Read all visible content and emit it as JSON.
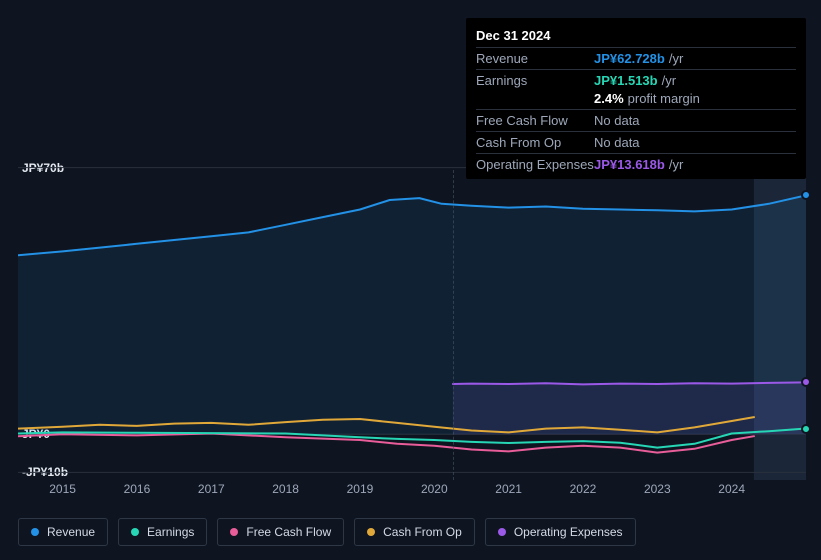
{
  "chart": {
    "type": "area-line",
    "background_color": "#0e1521",
    "grid_color": "#2a313d",
    "x_years": [
      2015,
      2016,
      2017,
      2018,
      2019,
      2020,
      2021,
      2022,
      2023,
      2024
    ],
    "x_start": 2014.4,
    "x_end": 2025.0,
    "y_axis": {
      "ticks": [
        {
          "value": 70,
          "label": "JP¥70b"
        },
        {
          "value": 0,
          "label": "JP¥0"
        },
        {
          "value": -10,
          "label": "-JP¥10b"
        }
      ],
      "min": -12,
      "max": 72
    },
    "forecast_start_x": 2024.3,
    "forecast_fill": "#1b2738",
    "marker_x": 2020.25,
    "series": {
      "revenue": {
        "label": "Revenue",
        "color": "#2391e6",
        "fill": "rgba(35,145,230,0.10)",
        "data": [
          [
            2014.4,
            47
          ],
          [
            2015,
            48
          ],
          [
            2015.5,
            49
          ],
          [
            2016,
            50
          ],
          [
            2016.5,
            51
          ],
          [
            2017,
            52
          ],
          [
            2017.5,
            53
          ],
          [
            2018,
            55
          ],
          [
            2018.5,
            57
          ],
          [
            2019,
            59
          ],
          [
            2019.4,
            61.5
          ],
          [
            2019.8,
            62
          ],
          [
            2020.1,
            60.5
          ],
          [
            2020.5,
            60
          ],
          [
            2021,
            59.5
          ],
          [
            2021.5,
            59.8
          ],
          [
            2022,
            59.2
          ],
          [
            2022.5,
            59
          ],
          [
            2023,
            58.8
          ],
          [
            2023.5,
            58.5
          ],
          [
            2024,
            59
          ],
          [
            2024.5,
            60.5
          ],
          [
            2025,
            62.73
          ]
        ]
      },
      "earnings": {
        "label": "Earnings",
        "color": "#27d6b5",
        "data": [
          [
            2014.4,
            0.2
          ],
          [
            2015,
            0.5
          ],
          [
            2016,
            0.4
          ],
          [
            2017,
            0.3
          ],
          [
            2018,
            0.2
          ],
          [
            2019,
            -0.8
          ],
          [
            2019.5,
            -1.2
          ],
          [
            2020,
            -1.5
          ],
          [
            2020.5,
            -2
          ],
          [
            2021,
            -2.3
          ],
          [
            2021.5,
            -2
          ],
          [
            2022,
            -1.8
          ],
          [
            2022.5,
            -2.2
          ],
          [
            2023,
            -3.5
          ],
          [
            2023.5,
            -2.5
          ],
          [
            2024,
            0.2
          ],
          [
            2024.5,
            0.8
          ],
          [
            2025,
            1.51
          ]
        ]
      },
      "fcf": {
        "label": "Free Cash Flow",
        "color": "#e85d9a",
        "data": [
          [
            2014.4,
            -0.5
          ],
          [
            2015,
            0
          ],
          [
            2016,
            -0.3
          ],
          [
            2017,
            0.2
          ],
          [
            2018,
            -0.8
          ],
          [
            2019,
            -1.5
          ],
          [
            2019.5,
            -2.5
          ],
          [
            2020,
            -3
          ],
          [
            2020.5,
            -4
          ],
          [
            2021,
            -4.5
          ],
          [
            2021.5,
            -3.5
          ],
          [
            2022,
            -3
          ],
          [
            2022.5,
            -3.5
          ],
          [
            2023,
            -4.8
          ],
          [
            2023.5,
            -3.8
          ],
          [
            2024,
            -1.5
          ],
          [
            2024.3,
            -0.5
          ]
        ]
      },
      "cfo": {
        "label": "Cash From Op",
        "color": "#e0a838",
        "data": [
          [
            2014.4,
            1.5
          ],
          [
            2015,
            2
          ],
          [
            2015.5,
            2.5
          ],
          [
            2016,
            2.2
          ],
          [
            2016.5,
            2.8
          ],
          [
            2017,
            3
          ],
          [
            2017.5,
            2.5
          ],
          [
            2018,
            3.2
          ],
          [
            2018.5,
            3.8
          ],
          [
            2019,
            4
          ],
          [
            2019.5,
            3
          ],
          [
            2020,
            2
          ],
          [
            2020.5,
            1
          ],
          [
            2021,
            0.5
          ],
          [
            2021.5,
            1.5
          ],
          [
            2022,
            1.8
          ],
          [
            2022.5,
            1.2
          ],
          [
            2023,
            0.5
          ],
          [
            2023.5,
            1.8
          ],
          [
            2024,
            3.5
          ],
          [
            2024.3,
            4.5
          ]
        ]
      },
      "opex": {
        "label": "Operating Expenses",
        "color": "#9b59e8",
        "fill": "rgba(155,89,232,0.12)",
        "data": [
          [
            2020.25,
            13.2
          ],
          [
            2020.5,
            13.3
          ],
          [
            2021,
            13.2
          ],
          [
            2021.5,
            13.4
          ],
          [
            2022,
            13.1
          ],
          [
            2022.5,
            13.3
          ],
          [
            2023,
            13.2
          ],
          [
            2023.5,
            13.4
          ],
          [
            2024,
            13.3
          ],
          [
            2024.5,
            13.5
          ],
          [
            2025,
            13.62
          ]
        ]
      }
    }
  },
  "tooltip": {
    "date": "Dec 31 2024",
    "rows": [
      {
        "label": "Revenue",
        "value": "JP¥62.728b",
        "color": "#2391e6",
        "suffix": "/yr"
      },
      {
        "label": "Earnings",
        "value": "JP¥1.513b",
        "color": "#27d6b5",
        "suffix": "/yr"
      },
      {
        "label": "",
        "pm_value": "2.4%",
        "pm_label": "profit margin"
      },
      {
        "label": "Free Cash Flow",
        "nodata": "No data"
      },
      {
        "label": "Cash From Op",
        "nodata": "No data"
      },
      {
        "label": "Operating Expenses",
        "value": "JP¥13.618b",
        "color": "#9b59e8",
        "suffix": "/yr"
      }
    ]
  },
  "legend": [
    {
      "key": "revenue",
      "label": "Revenue",
      "color": "#2391e6"
    },
    {
      "key": "earnings",
      "label": "Earnings",
      "color": "#27d6b5"
    },
    {
      "key": "fcf",
      "label": "Free Cash Flow",
      "color": "#e85d9a"
    },
    {
      "key": "cfo",
      "label": "Cash From Op",
      "color": "#e0a838"
    },
    {
      "key": "opex",
      "label": "Operating Expenses",
      "color": "#9b59e8"
    }
  ]
}
